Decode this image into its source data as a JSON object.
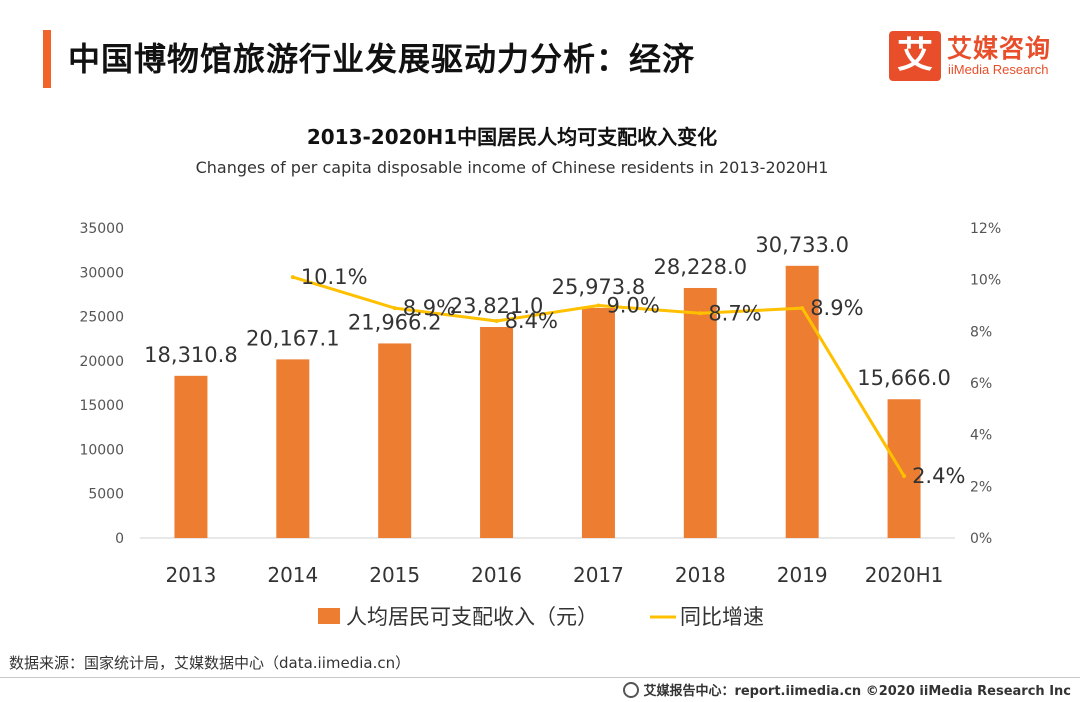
{
  "header": {
    "title": "中国博物馆旅游行业发展驱动力分析：经济"
  },
  "logo": {
    "mark": "艾",
    "name_cn": "艾媒咨询",
    "name_en": "iiMedia Research"
  },
  "chart_data": {
    "type": "bar",
    "title": "2013-2020H1中国居民人均可支配收入变化",
    "subtitle": "Changes of per capita disposable income of Chinese residents in 2013-2020H1",
    "categories": [
      "2013",
      "2014",
      "2015",
      "2016",
      "2017",
      "2018",
      "2019",
      "2020H1"
    ],
    "series": [
      {
        "name": "人均居民可支配收入（元）",
        "type": "bar",
        "axis": "left",
        "color": "#ed7d31",
        "values": [
          18310.8,
          20167.1,
          21966.2,
          23821.0,
          25973.8,
          28228.0,
          30733.0,
          15666.0
        ],
        "labels": [
          "18,310.8",
          "20,167.1",
          "21,966.2",
          "23,821.0",
          "25,973.8",
          "28,228.0",
          "30,733.0",
          "15,666.0"
        ]
      },
      {
        "name": "同比增速",
        "type": "line",
        "axis": "right",
        "color": "#ffc000",
        "values": [
          null,
          10.1,
          8.9,
          8.4,
          9.0,
          8.7,
          8.9,
          2.4
        ],
        "labels": [
          "",
          "10.1%",
          "8.9%",
          "8.4%",
          "9.0%",
          "8.7%",
          "8.9%",
          "2.4%"
        ]
      }
    ],
    "y_left": {
      "range": [
        0,
        35000
      ],
      "ticks": [
        "0",
        "5000",
        "10000",
        "15000",
        "20000",
        "25000",
        "30000",
        "35000"
      ]
    },
    "y_right": {
      "range": [
        0,
        12
      ],
      "ticks": [
        "0%",
        "2%",
        "4%",
        "6%",
        "8%",
        "10%",
        "12%"
      ]
    },
    "grid": false,
    "legend_position": "bottom"
  },
  "source_text": "数据来源：国家统计局，艾媒数据中心（data.iimedia.cn）",
  "footer_text": "艾媒报告中心：report.iimedia.cn  ©2020  iiMedia Research  Inc"
}
